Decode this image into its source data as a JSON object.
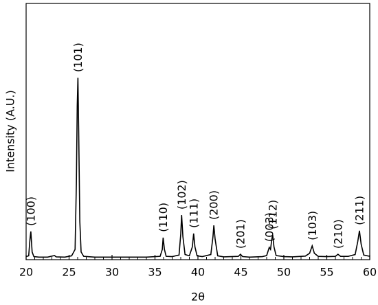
{
  "chart_data": {
    "type": "line",
    "xlabel": "2θ",
    "ylabel": "Intensity (A.U.)",
    "xlim": [
      20,
      60
    ],
    "xticks": [
      20,
      25,
      30,
      35,
      40,
      45,
      50,
      55,
      60
    ],
    "minor_ticks_per_major": 5,
    "ylim": [
      0,
      100
    ],
    "series": [
      {
        "color": "#000000",
        "x": [
          20.0,
          20.3,
          20.45,
          20.55,
          20.7,
          20.9,
          21.5,
          22.5,
          23.3,
          23.5,
          24.5,
          25.3,
          25.7,
          25.85,
          25.95,
          26.03,
          26.12,
          26.25,
          26.4,
          26.7,
          28,
          30,
          32,
          34,
          35.6,
          35.85,
          35.95,
          36.1,
          36.3,
          37,
          37.8,
          38.0,
          38.1,
          38.25,
          38.5,
          39.0,
          39.35,
          39.5,
          39.65,
          39.9,
          40.5,
          41.5,
          41.75,
          41.85,
          42.0,
          42.3,
          43,
          44.7,
          44.95,
          45.2,
          46,
          47.5,
          48.0,
          48.3,
          48.45,
          48.6,
          48.7,
          48.85,
          49.1,
          50,
          51,
          52.5,
          53.0,
          53.3,
          53.55,
          54,
          55,
          56.0,
          56.3,
          56.6,
          57.5,
          58.3,
          58.6,
          58.8,
          59.0,
          59.3,
          60
        ],
        "values": [
          1.2,
          1.5,
          8,
          11,
          3,
          1.2,
          1.0,
          1.0,
          1.6,
          1.1,
          1.0,
          1.5,
          4,
          30,
          60,
          71,
          50,
          15,
          3,
          1.3,
          1.0,
          1.0,
          1.0,
          1.0,
          1.3,
          4,
          8.6,
          4,
          1.3,
          1.2,
          1.8,
          10,
          17.4,
          9,
          2,
          1.5,
          5,
          10.2,
          5,
          1.5,
          1.2,
          2,
          9,
          13.4,
          8,
          1.5,
          1.1,
          1.3,
          2.1,
          1.2,
          1.0,
          1.2,
          1.6,
          4.8,
          4,
          8,
          9.7,
          5,
          1.6,
          1.2,
          1.1,
          1.4,
          2.5,
          5.4,
          2.5,
          1.3,
          1.2,
          1.3,
          2.1,
          1.3,
          1.3,
          2,
          7,
          11.3,
          6,
          1.8,
          1.3
        ]
      }
    ],
    "annotations": [
      {
        "text": "(100)",
        "x": 20.55
      },
      {
        "text": "(101)",
        "x": 26.03
      },
      {
        "text": "(110)",
        "x": 35.95
      },
      {
        "text": "(102)",
        "x": 38.1
      },
      {
        "text": "(111)",
        "x": 39.5
      },
      {
        "text": "(200)",
        "x": 41.85
      },
      {
        "text": "(201)",
        "x": 44.95
      },
      {
        "text": "(003)",
        "x": 48.3
      },
      {
        "text": "(112)",
        "x": 48.7
      },
      {
        "text": "(103)",
        "x": 53.3
      },
      {
        "text": "(210)",
        "x": 56.3
      },
      {
        "text": "(211)",
        "x": 58.8
      }
    ]
  }
}
